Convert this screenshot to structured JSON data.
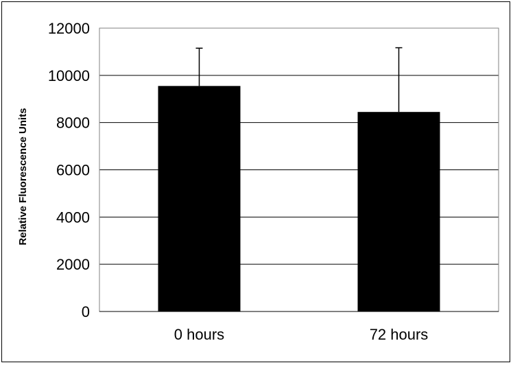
{
  "chart_data": {
    "type": "bar",
    "categories": [
      "0 hours",
      "72 hours"
    ],
    "values": [
      9550,
      8450
    ],
    "error_upper": [
      11150,
      11170
    ],
    "title": "",
    "xlabel": "",
    "ylabel": "Relative Fluorescence Units",
    "ylim": [
      0,
      12000
    ],
    "yticks": [
      "0",
      "2000",
      "4000",
      "6000",
      "8000",
      "10000",
      "12000"
    ],
    "grid": true,
    "legend": "none",
    "bar_color": "#000000",
    "grid_color": "#000000",
    "plot_border_color": "#808080"
  }
}
